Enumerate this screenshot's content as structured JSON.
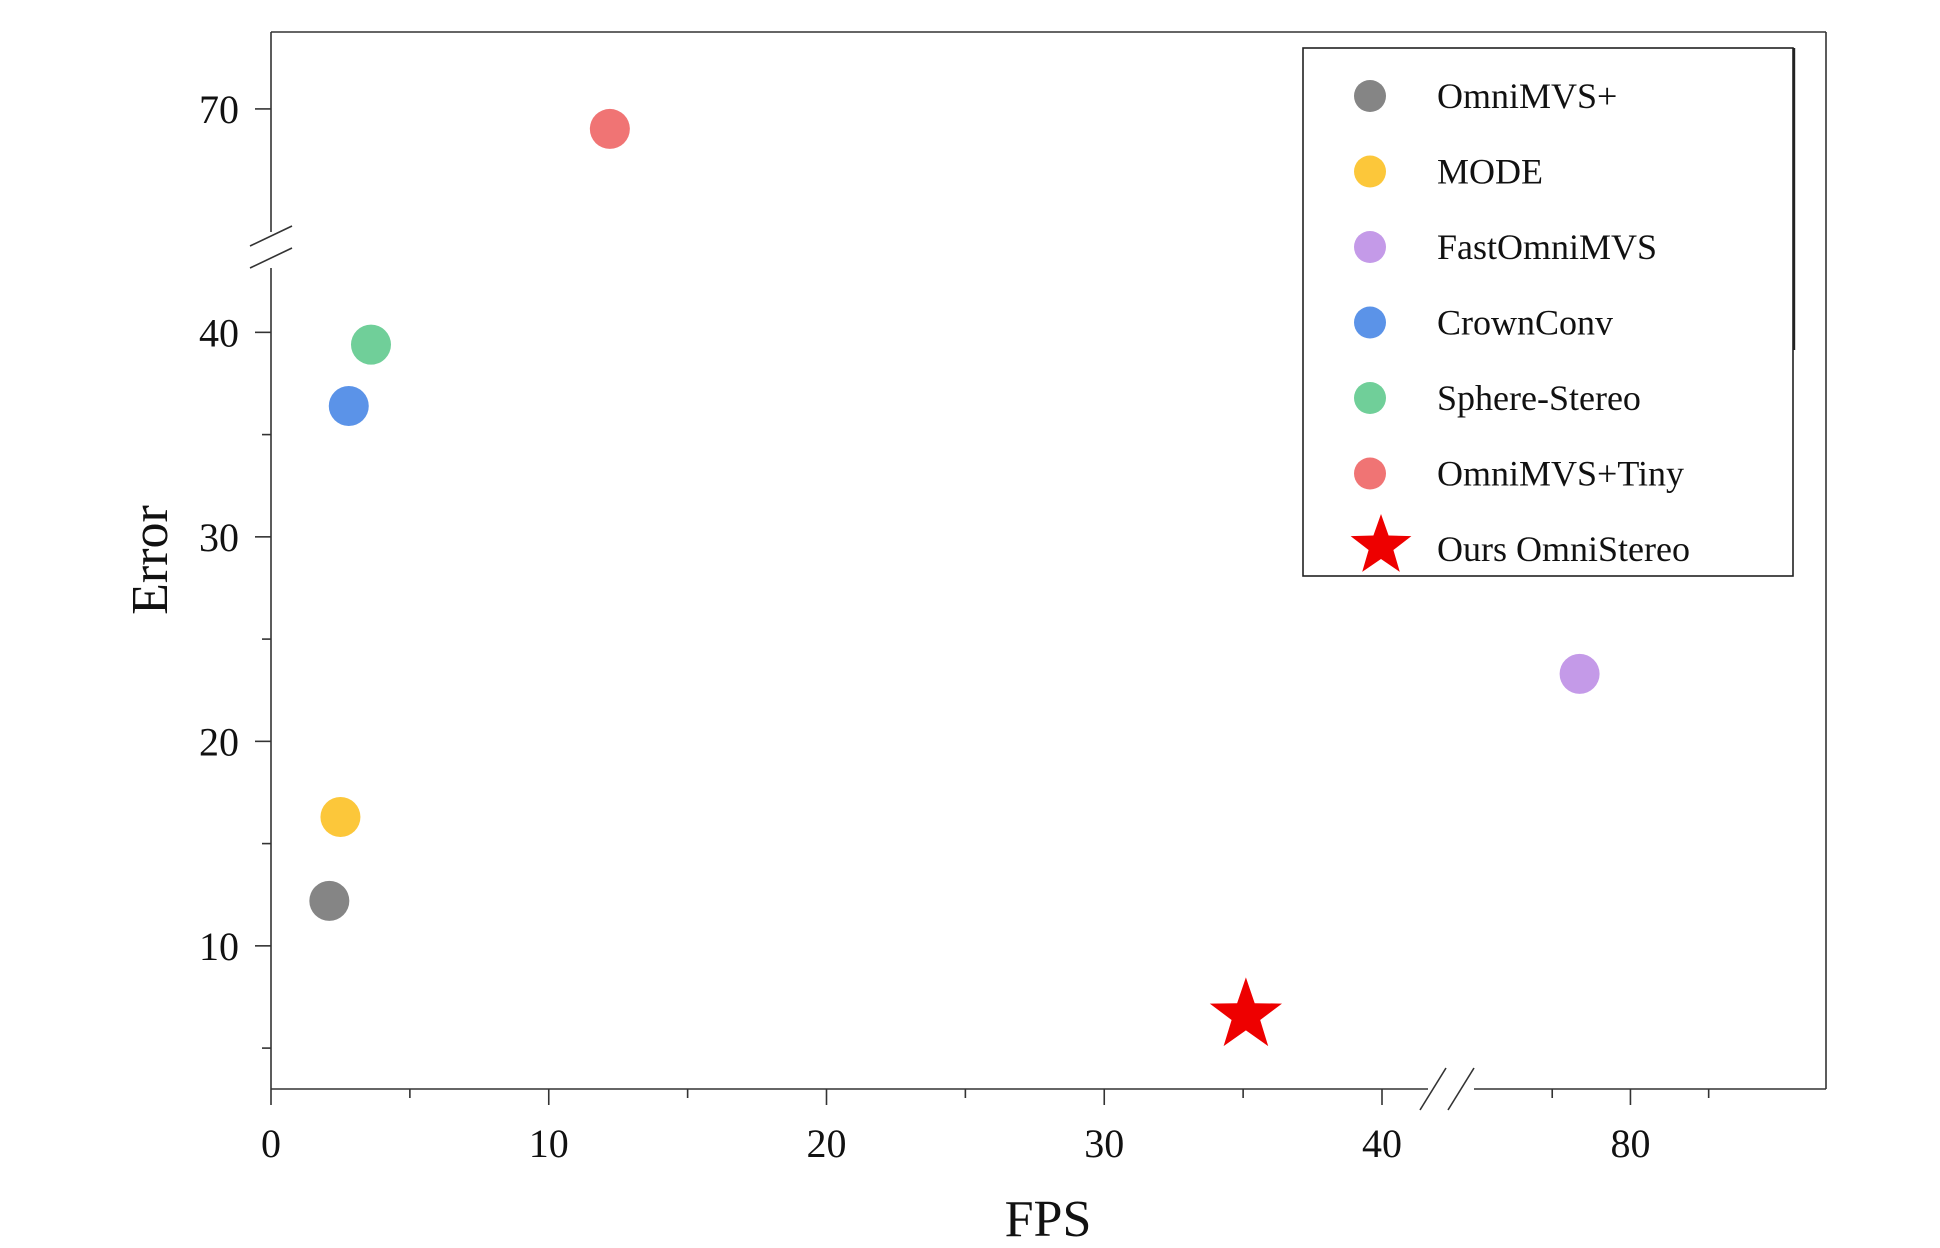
{
  "chart_data": {
    "type": "scatter",
    "title": "",
    "xlabel": "FPS",
    "ylabel": "Error",
    "x_axis": {
      "broken": true,
      "segments": [
        {
          "range": [
            0,
            40
          ],
          "ticks": [
            0,
            10,
            20,
            30,
            40
          ]
        },
        {
          "range": [
            76,
            85
          ],
          "ticks": [
            80
          ]
        }
      ]
    },
    "y_axis": {
      "broken": true,
      "segments": [
        {
          "range": [
            3,
            43
          ],
          "ticks": [
            10,
            20,
            30,
            40
          ]
        },
        {
          "range": [
            62,
            75
          ],
          "ticks": [
            70
          ]
        }
      ]
    },
    "grid": false,
    "legend_position": "top-right",
    "series": [
      {
        "name": "OmniMVS+",
        "marker": "circle",
        "color": "#858585",
        "x": 2.1,
        "y": 12.2
      },
      {
        "name": "MODE",
        "marker": "circle",
        "color": "#FCC73A",
        "x": 2.5,
        "y": 16.3
      },
      {
        "name": "FastOmniMVS",
        "marker": "circle",
        "color": "#C49AE8",
        "x": 78.7,
        "y": 23.3
      },
      {
        "name": "CrownConv",
        "marker": "circle",
        "color": "#5B93E8",
        "x": 2.8,
        "y": 36.4
      },
      {
        "name": "Sphere-Stereo",
        "marker": "circle",
        "color": "#70CF99",
        "x": 3.6,
        "y": 39.4
      },
      {
        "name": "OmniMVS+Tiny",
        "marker": "circle",
        "color": "#F07474",
        "x": 12.2,
        "y": 68.7
      },
      {
        "name": "Ours OmniStereo",
        "marker": "star",
        "color": "#EE0000",
        "x": 35.1,
        "y": 6.6
      }
    ]
  }
}
